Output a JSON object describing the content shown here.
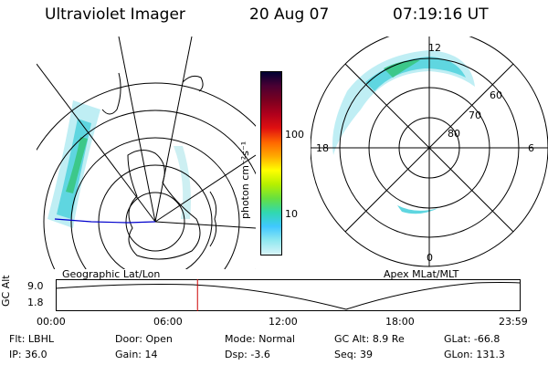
{
  "header": {
    "instrument": "Ultraviolet Imager",
    "date": "20 Aug 07",
    "time": "07:19:16 UT"
  },
  "colorbar": {
    "unit_label": "photon cm⁻²s⁻¹",
    "ticks": [
      "100",
      "10"
    ],
    "colors": [
      "#000033",
      "#4b0033",
      "#7a0020",
      "#b0001c",
      "#e01010",
      "#ff6600",
      "#ffaa00",
      "#ffff00",
      "#b6f000",
      "#66e040",
      "#30d8b0",
      "#40c8ff",
      "#90e8f0",
      "#d8f4f8"
    ]
  },
  "left_map": {
    "caption": "Geographic Lat/Lon"
  },
  "right_map": {
    "caption": "Apex MLat/MLT",
    "mlt_labels": {
      "top": "12",
      "left": "18",
      "right": "6",
      "bottom": "0"
    },
    "lat_labels": [
      "60",
      "70",
      "80"
    ]
  },
  "timeline": {
    "ylabel": "GC Alt",
    "yticks": [
      "9.0",
      "1.8"
    ],
    "xticks": [
      "00:00",
      "06:00",
      "12:00",
      "18:00",
      "23:59"
    ],
    "marker_fraction": 0.305
  },
  "footer": {
    "filt_label": "Flt:",
    "filt_value": "LBHL",
    "ip_label": "IP:",
    "ip_value": "36.0",
    "door_label": "Door:",
    "door_value": "Open",
    "gain_label": "Gain:",
    "gain_value": "14",
    "mode_label": "Mode:",
    "mode_value": "Normal",
    "dsp_label": "Dsp:",
    "dsp_value": "-3.6",
    "gcalt_label": "GC Alt:",
    "gcalt_value": "8.9 Re",
    "seq_label": "Seq:",
    "seq_value": "39",
    "glat_label": "GLat:",
    "glat_value": "-66.8",
    "glon_label": "GLon:",
    "glon_value": "131.3"
  }
}
